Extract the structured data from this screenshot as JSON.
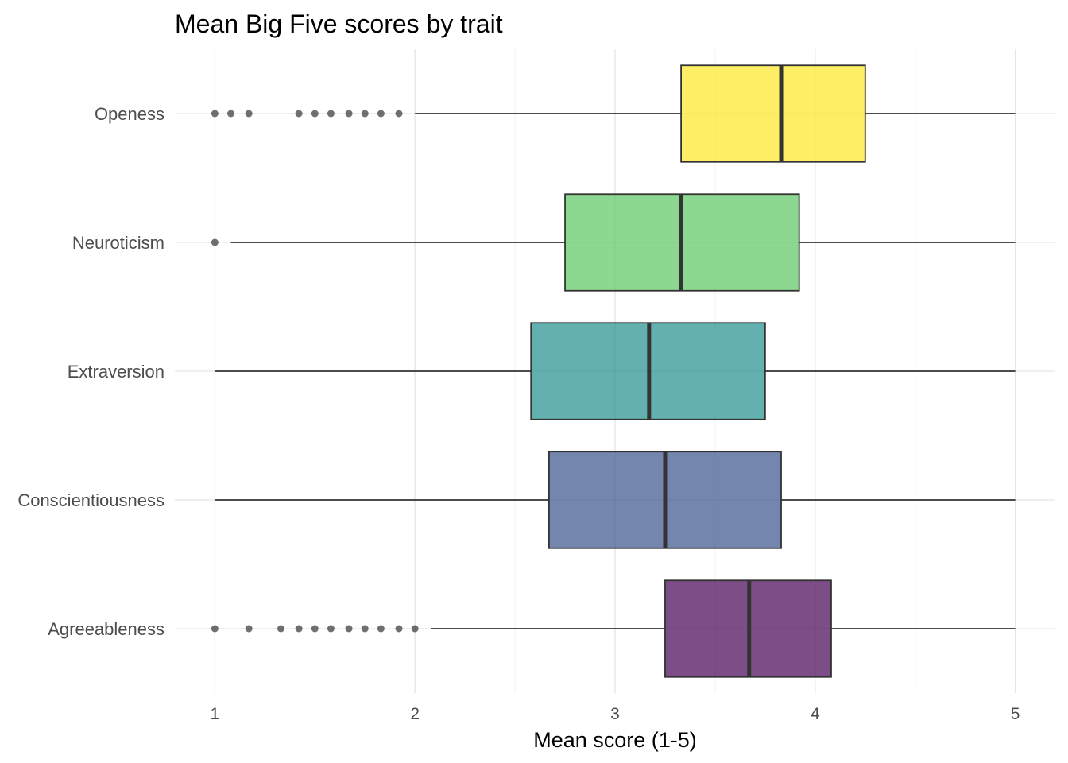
{
  "chart_data": {
    "type": "boxplot",
    "orientation": "horizontal",
    "title": "Mean Big Five scores by trait",
    "xlabel": "Mean score (1-5)",
    "ylabel": "",
    "xlim": [
      0.8,
      5.2
    ],
    "x_ticks": [
      1,
      2,
      3,
      4,
      5
    ],
    "grid": true,
    "legend": "none",
    "categories": [
      "Agreeableness",
      "Conscientiousness",
      "Extraversion",
      "Neuroticism",
      "Openess"
    ],
    "boxes": [
      {
        "category": "Agreeableness",
        "whisker_low": 2.08,
        "q1": 3.25,
        "median": 3.67,
        "q3": 4.08,
        "whisker_high": 5.0,
        "outliers": [
          1.0,
          1.17,
          1.33,
          1.42,
          1.5,
          1.58,
          1.67,
          1.75,
          1.83,
          1.92,
          2.0
        ],
        "color": "#440154"
      },
      {
        "category": "Conscientiousness",
        "whisker_low": 1.0,
        "q1": 2.67,
        "median": 3.25,
        "q3": 3.83,
        "whisker_high": 5.0,
        "outliers": [],
        "color": "#3B528B"
      },
      {
        "category": "Extraversion",
        "whisker_low": 1.0,
        "q1": 2.58,
        "median": 3.17,
        "q3": 3.75,
        "whisker_high": 5.0,
        "outliers": [],
        "color": "#21908C"
      },
      {
        "category": "Neuroticism",
        "whisker_low": 1.08,
        "q1": 2.75,
        "median": 3.33,
        "q3": 3.92,
        "whisker_high": 5.0,
        "outliers": [
          1.0
        ],
        "color": "#5DC863"
      },
      {
        "category": "Openess",
        "whisker_low": 2.0,
        "q1": 3.33,
        "median": 3.83,
        "q3": 4.25,
        "whisker_high": 5.0,
        "outliers": [
          1.0,
          1.08,
          1.17,
          1.42,
          1.5,
          1.58,
          1.67,
          1.75,
          1.83,
          1.92
        ],
        "color": "#FDE725"
      }
    ]
  }
}
